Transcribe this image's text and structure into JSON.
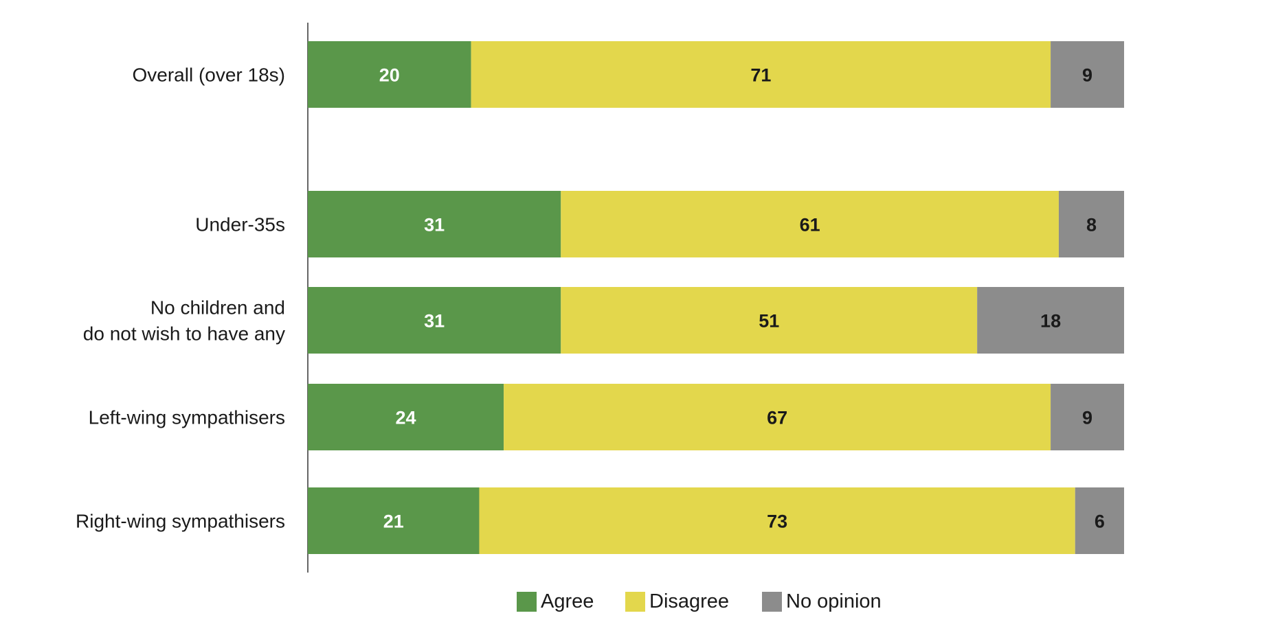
{
  "chart_data": {
    "type": "bar",
    "orientation": "horizontal",
    "stacked": true,
    "categories": [
      "Overall (over 18s)",
      "Under-35s",
      "No children and\ndo not wish to have any",
      "Left-wing sympathisers",
      "Right-wing sympathisers"
    ],
    "series": [
      {
        "name": "Agree",
        "color": "#5a974a",
        "label_color": "#ffffff",
        "values": [
          20,
          31,
          31,
          24,
          21
        ]
      },
      {
        "name": "Disagree",
        "color": "#e3d74c",
        "label_color": "#1a1a1a",
        "values": [
          71,
          61,
          51,
          67,
          73
        ]
      },
      {
        "name": "No opinion",
        "color": "#8c8c8c",
        "label_color": "#1a1a1a",
        "values": [
          9,
          8,
          18,
          9,
          6
        ]
      }
    ],
    "xlim": [
      0,
      100
    ],
    "title": "",
    "xlabel": "",
    "ylabel": "",
    "grid": false,
    "legend": "bottom-center"
  }
}
